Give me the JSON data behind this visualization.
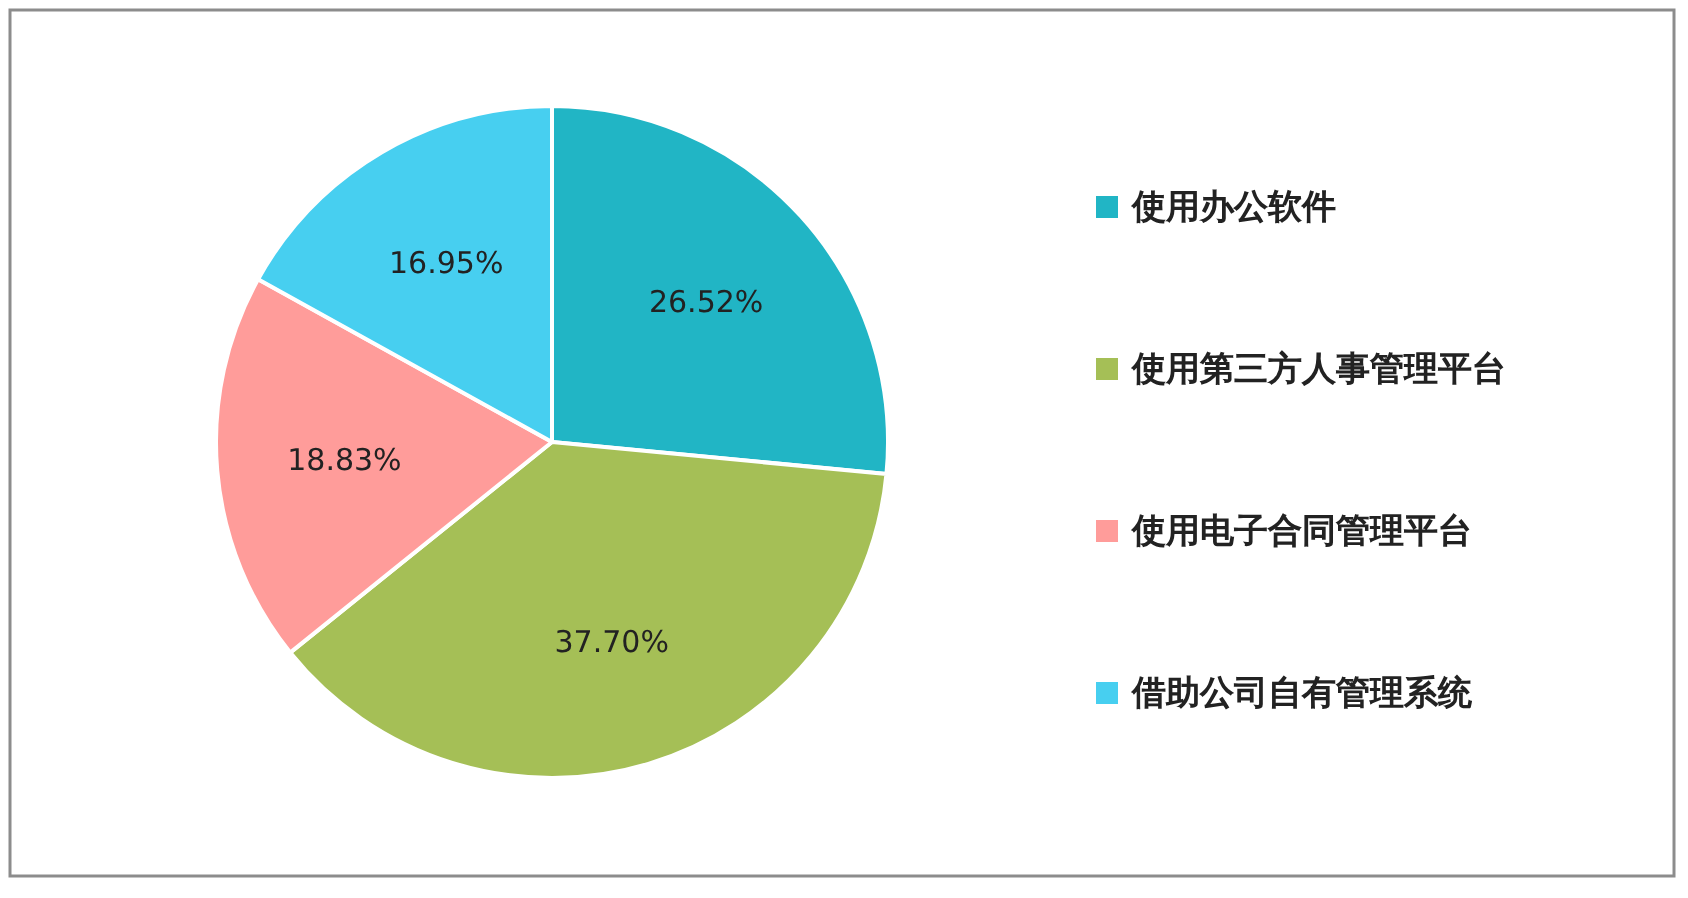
{
  "chart_data": {
    "type": "pie",
    "categories": [
      "使用办公软件",
      "使用第三方人事管理平台",
      "使用电子合同管理平台",
      "借助公司自有管理系统"
    ],
    "values": [
      26.52,
      37.7,
      18.83,
      16.95
    ],
    "value_labels": [
      "26.52%",
      "37.70%",
      "18.83%",
      "16.95%"
    ],
    "colors": [
      "#21b5c5",
      "#a5bf56",
      "#ff9c9a",
      "#47cff0"
    ],
    "legend": "right"
  }
}
